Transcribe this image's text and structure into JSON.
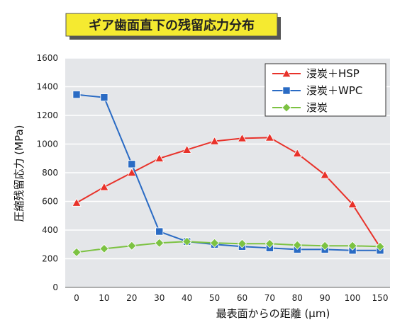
{
  "chart_data": {
    "type": "line",
    "title": "ギア歯面直下の残留応力分布",
    "xlabel": "最表面からの距離 (μm)",
    "ylabel": "圧縮残留応力 (MPa)",
    "categories": [
      "0",
      "10",
      "20",
      "30",
      "40",
      "50",
      "60",
      "70",
      "80",
      "90",
      "100",
      "150"
    ],
    "ylim": [
      0,
      1600
    ],
    "yticks": [
      0,
      200,
      400,
      600,
      800,
      1000,
      1200,
      1400,
      1600
    ],
    "ytick_labels": [
      "0",
      "200",
      "400",
      "600",
      "800",
      "1000",
      "1200",
      "1400",
      "1600"
    ],
    "grid": true,
    "legend_position": "top-right",
    "series": [
      {
        "name": "浸炭＋HSP",
        "color": "#e8322a",
        "marker": "triangle",
        "values": [
          590,
          700,
          800,
          900,
          960,
          1020,
          1040,
          1045,
          935,
          785,
          580,
          280
        ]
      },
      {
        "name": "浸炭＋WPC",
        "color": "#2a6bc4",
        "marker": "square",
        "values": [
          1345,
          1325,
          860,
          390,
          320,
          300,
          285,
          275,
          265,
          265,
          258,
          258
        ]
      },
      {
        "name": "浸炭",
        "color": "#7cc242",
        "marker": "diamond",
        "values": [
          245,
          270,
          290,
          310,
          320,
          310,
          305,
          305,
          295,
          290,
          290,
          285
        ]
      }
    ]
  }
}
